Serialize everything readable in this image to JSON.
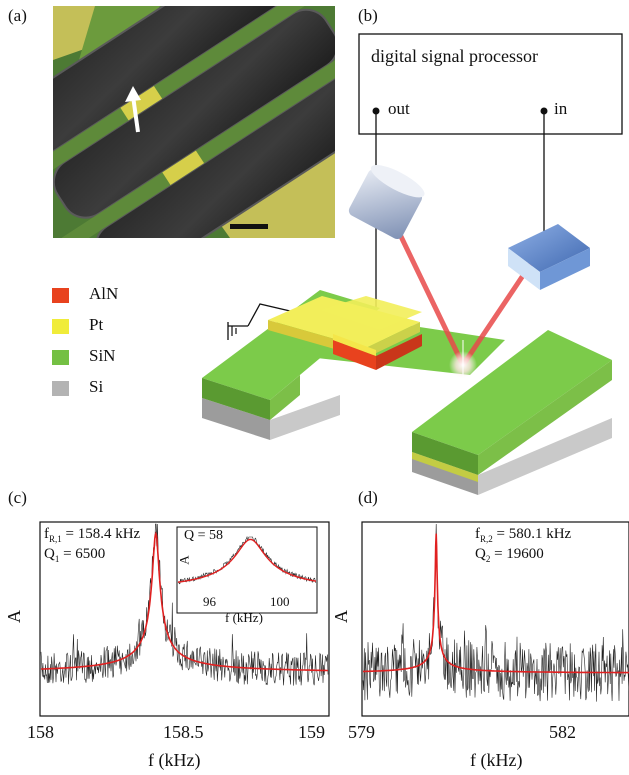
{
  "panels": {
    "a": "(a)",
    "b": "(b)",
    "c": "(c)",
    "d": "(d)"
  },
  "dsp": {
    "title": "digital signal processor",
    "out_label": "out",
    "in_label": "in"
  },
  "legend": [
    {
      "label": "AlN",
      "color": "#e8421e"
    },
    {
      "label": "Pt",
      "color": "#f0ec3a"
    },
    {
      "label": "SiN",
      "color": "#74c043"
    },
    {
      "label": "Si",
      "color": "#b3b3b3"
    }
  ],
  "colors": {
    "fit_line": "#e02020",
    "noise": "#222222",
    "laser": "#e84a4a",
    "detector": "#5b86c8",
    "source": "#9aa9c4",
    "sem_yellow": "#c9c45a",
    "sem_green": "#5e8a3a"
  },
  "chart_data": [
    {
      "type": "line",
      "panel": "(c)",
      "xlabel": "f (kHz)",
      "ylabel": "A",
      "xlim": [
        158,
        159
      ],
      "x_ticks": [
        "158",
        "158.5",
        "159"
      ],
      "annotation_lines": [
        "f",
        "R,1",
        " = 158.4 kHz",
        "Q",
        "1",
        " = 6500"
      ],
      "resonance": {
        "f0_khz": 158.4,
        "Q": 6500
      },
      "inset": {
        "type": "line",
        "ylabel": "A",
        "xlabel": "f (kHz)",
        "xlim": [
          94,
          102
        ],
        "x_ticks": [
          "96",
          "100"
        ],
        "annotation": "Q = 58",
        "resonance": {
          "f0_khz": 98.2,
          "Q": 58
        }
      }
    },
    {
      "type": "line",
      "panel": "(d)",
      "xlabel": "f (kHz)",
      "ylabel": "A",
      "xlim": [
        579,
        583
      ],
      "x_ticks": [
        "579",
        "582"
      ],
      "resonance": {
        "f0_khz": 580.1,
        "Q": 19600
      }
    }
  ],
  "texts": {
    "c_f_main": "f",
    "c_f_sub": "R,1",
    "c_f_val": " = 158.4 kHz",
    "c_q_main": "Q",
    "c_q_sub": "1",
    "c_q_val": " = 6500",
    "d_f_main": "f",
    "d_f_sub": "R,2",
    "d_f_val": " = 580.1 kHz",
    "d_q_main": "Q",
    "d_q_sub": "2",
    "d_q_val": " = 19600",
    "inset_q": "Q = 58",
    "inset_ylabel": "A",
    "inset_xlabel": "f (kHz)",
    "inset_tick_1": "96",
    "inset_tick_2": "100",
    "c_ylabel": "A",
    "d_ylabel": "A",
    "c_xlabel": "f (kHz)",
    "d_xlabel": "f (kHz)",
    "c_tick_1": "158",
    "c_tick_2": "158.5",
    "c_tick_3": "159",
    "d_tick_1": "579",
    "d_tick_2": "582"
  }
}
